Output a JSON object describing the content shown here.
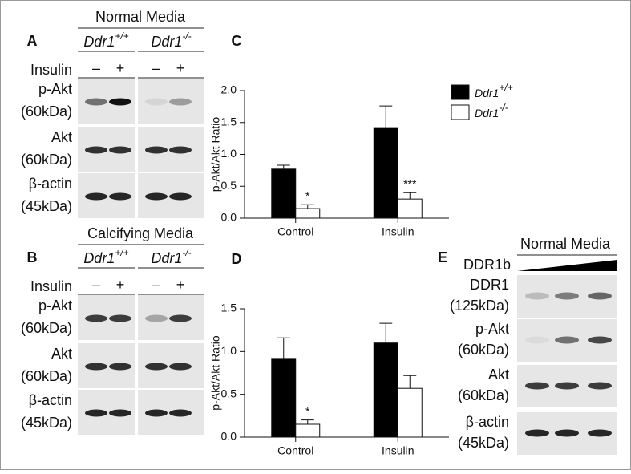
{
  "panel_A": {
    "letter": "A",
    "media": "Normal Media",
    "genotypes": [
      "Ddr1+/+",
      "Ddr1-/-"
    ],
    "treatment": "Insulin",
    "treatment_marks": [
      "–",
      "+",
      "–",
      "+"
    ],
    "rows": [
      {
        "protein": "p-Akt",
        "size": "(60kDa)"
      },
      {
        "protein": "Akt",
        "size": "(60kDa)"
      },
      {
        "protein": "β-actin",
        "size": "(45kDa)"
      }
    ]
  },
  "panel_B": {
    "letter": "B",
    "media": "Calcifying Media",
    "genotypes": [
      "Ddr1+/+",
      "Ddr1-/-"
    ],
    "treatment": "Insulin",
    "treatment_marks": [
      "–",
      "+",
      "–",
      "+"
    ],
    "rows": [
      {
        "protein": "p-Akt",
        "size": "(60kDa)"
      },
      {
        "protein": "Akt",
        "size": "(60kDa)"
      },
      {
        "protein": "β-actin",
        "size": "(45kDa)"
      }
    ]
  },
  "panel_E": {
    "letter": "E",
    "media": "Normal Media",
    "treatment": "DDR1b",
    "rows": [
      {
        "protein": "DDR1",
        "size": "(125kDa)"
      },
      {
        "protein": "p-Akt",
        "size": "(60kDa)"
      },
      {
        "protein": "Akt",
        "size": "(60kDa)"
      },
      {
        "protein": "β-actin",
        "size": "(45kDa)"
      }
    ]
  },
  "chart_data": [
    {
      "type": "bar",
      "panel": "C",
      "y_label": "p-Akt/Akt Ratio",
      "categories": [
        "Control",
        "Insulin"
      ],
      "series": [
        {
          "name": "Ddr1+/+",
          "color": "#000000",
          "values": [
            0.77,
            1.42
          ],
          "errors": [
            0.06,
            0.34
          ]
        },
        {
          "name": "Ddr1-/-",
          "color": "#ffffff",
          "values": [
            0.15,
            0.3
          ],
          "errors": [
            0.06,
            0.1
          ],
          "significance": [
            "*",
            "***"
          ]
        }
      ],
      "ylim": [
        0,
        2
      ],
      "yticks": [
        {
          "value": 0,
          "label": "0.0"
        },
        0.5,
        {
          "value": 1,
          "label": "1.0"
        },
        1.5,
        {
          "value": 2,
          "label": "2.0"
        }
      ],
      "legend": "outside right"
    },
    {
      "type": "bar",
      "panel": "D",
      "y_label": "p-Akt/Akt Ratio",
      "categories": [
        "Control",
        "Insulin"
      ],
      "series": [
        {
          "color": "#000000",
          "values": [
            0.92,
            1.1
          ],
          "errors": [
            0.24,
            0.23
          ]
        },
        {
          "color": "#ffffff",
          "values": [
            0.15,
            0.57
          ],
          "errors": [
            0.05,
            0.15
          ],
          "significance": [
            "*",
            null
          ]
        }
      ],
      "ylim": [
        0,
        1.5
      ],
      "yticks": [
        {
          "value": 0,
          "label": "0.0"
        },
        0.5,
        {
          "value": 1,
          "label": "1.0"
        },
        1.5
      ]
    }
  ]
}
